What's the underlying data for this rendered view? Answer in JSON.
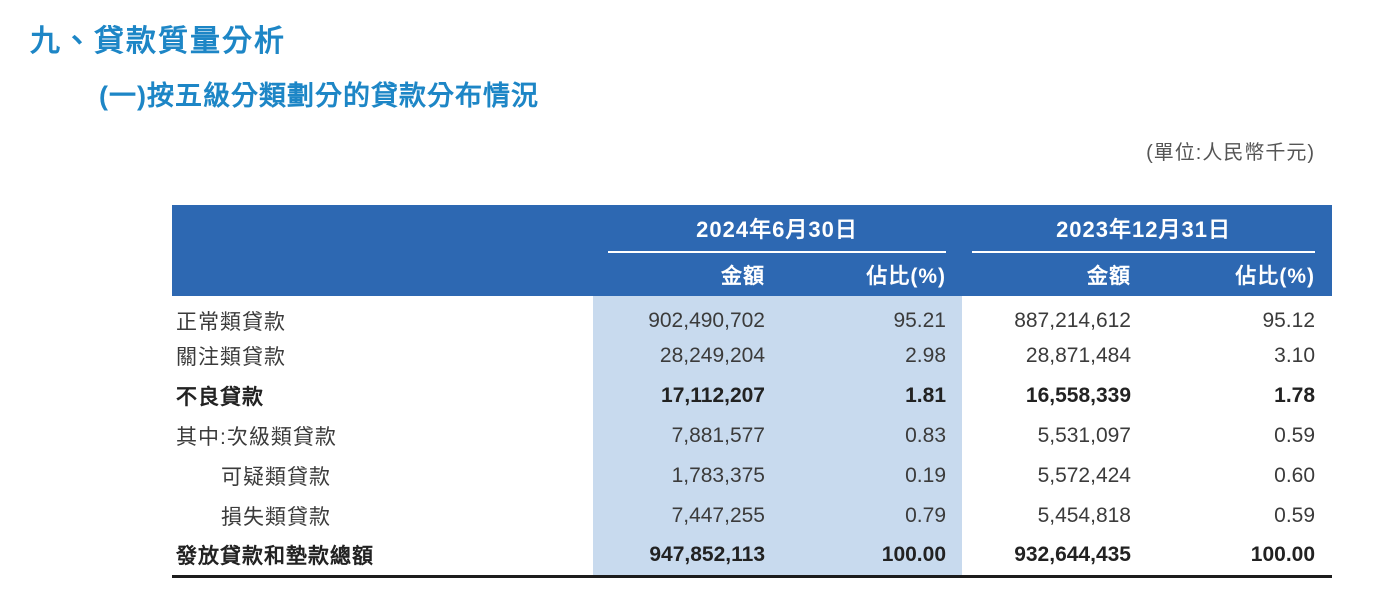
{
  "page": {
    "title": "九、貸款質量分析",
    "subtitle": "(一)按五級分類劃分的貸款分布情況",
    "unit_note": "(單位:人民幣千元)"
  },
  "colors": {
    "title_accent": "#1d86c6",
    "header_band": "#2d68b2",
    "highlight_column": "#c8daee"
  },
  "table": {
    "column_groups": [
      {
        "date_label": "2024年6月30日",
        "amount_header": "金額",
        "pct_header": "佔比(%)"
      },
      {
        "date_label": "2023年12月31日",
        "amount_header": "金額",
        "pct_header": "佔比(%)"
      }
    ],
    "rows": [
      {
        "label": "正常類貸款",
        "amount_2024": "902,490,702",
        "pct_2024": "95.21",
        "amount_2023": "887,214,612",
        "pct_2023": "95.12"
      },
      {
        "label": "關注類貸款",
        "amount_2024": "28,249,204",
        "pct_2024": "2.98",
        "amount_2023": "28,871,484",
        "pct_2023": "3.10"
      },
      {
        "label": "不良貸款",
        "amount_2024": "17,112,207",
        "pct_2024": "1.81",
        "amount_2023": "16,558,339",
        "pct_2023": "1.78"
      },
      {
        "label": "其中:次級類貸款",
        "amount_2024": "7,881,577",
        "pct_2024": "0.83",
        "amount_2023": "5,531,097",
        "pct_2023": "0.59"
      },
      {
        "label": "可疑類貸款",
        "amount_2024": "1,783,375",
        "pct_2024": "0.19",
        "amount_2023": "5,572,424",
        "pct_2023": "0.60"
      },
      {
        "label": "損失類貸款",
        "amount_2024": "7,447,255",
        "pct_2024": "0.79",
        "amount_2023": "5,454,818",
        "pct_2023": "0.59"
      },
      {
        "label": "發放貸款和墊款總額",
        "amount_2024": "947,852,113",
        "pct_2024": "100.00",
        "amount_2023": "932,644,435",
        "pct_2023": "100.00"
      }
    ]
  }
}
